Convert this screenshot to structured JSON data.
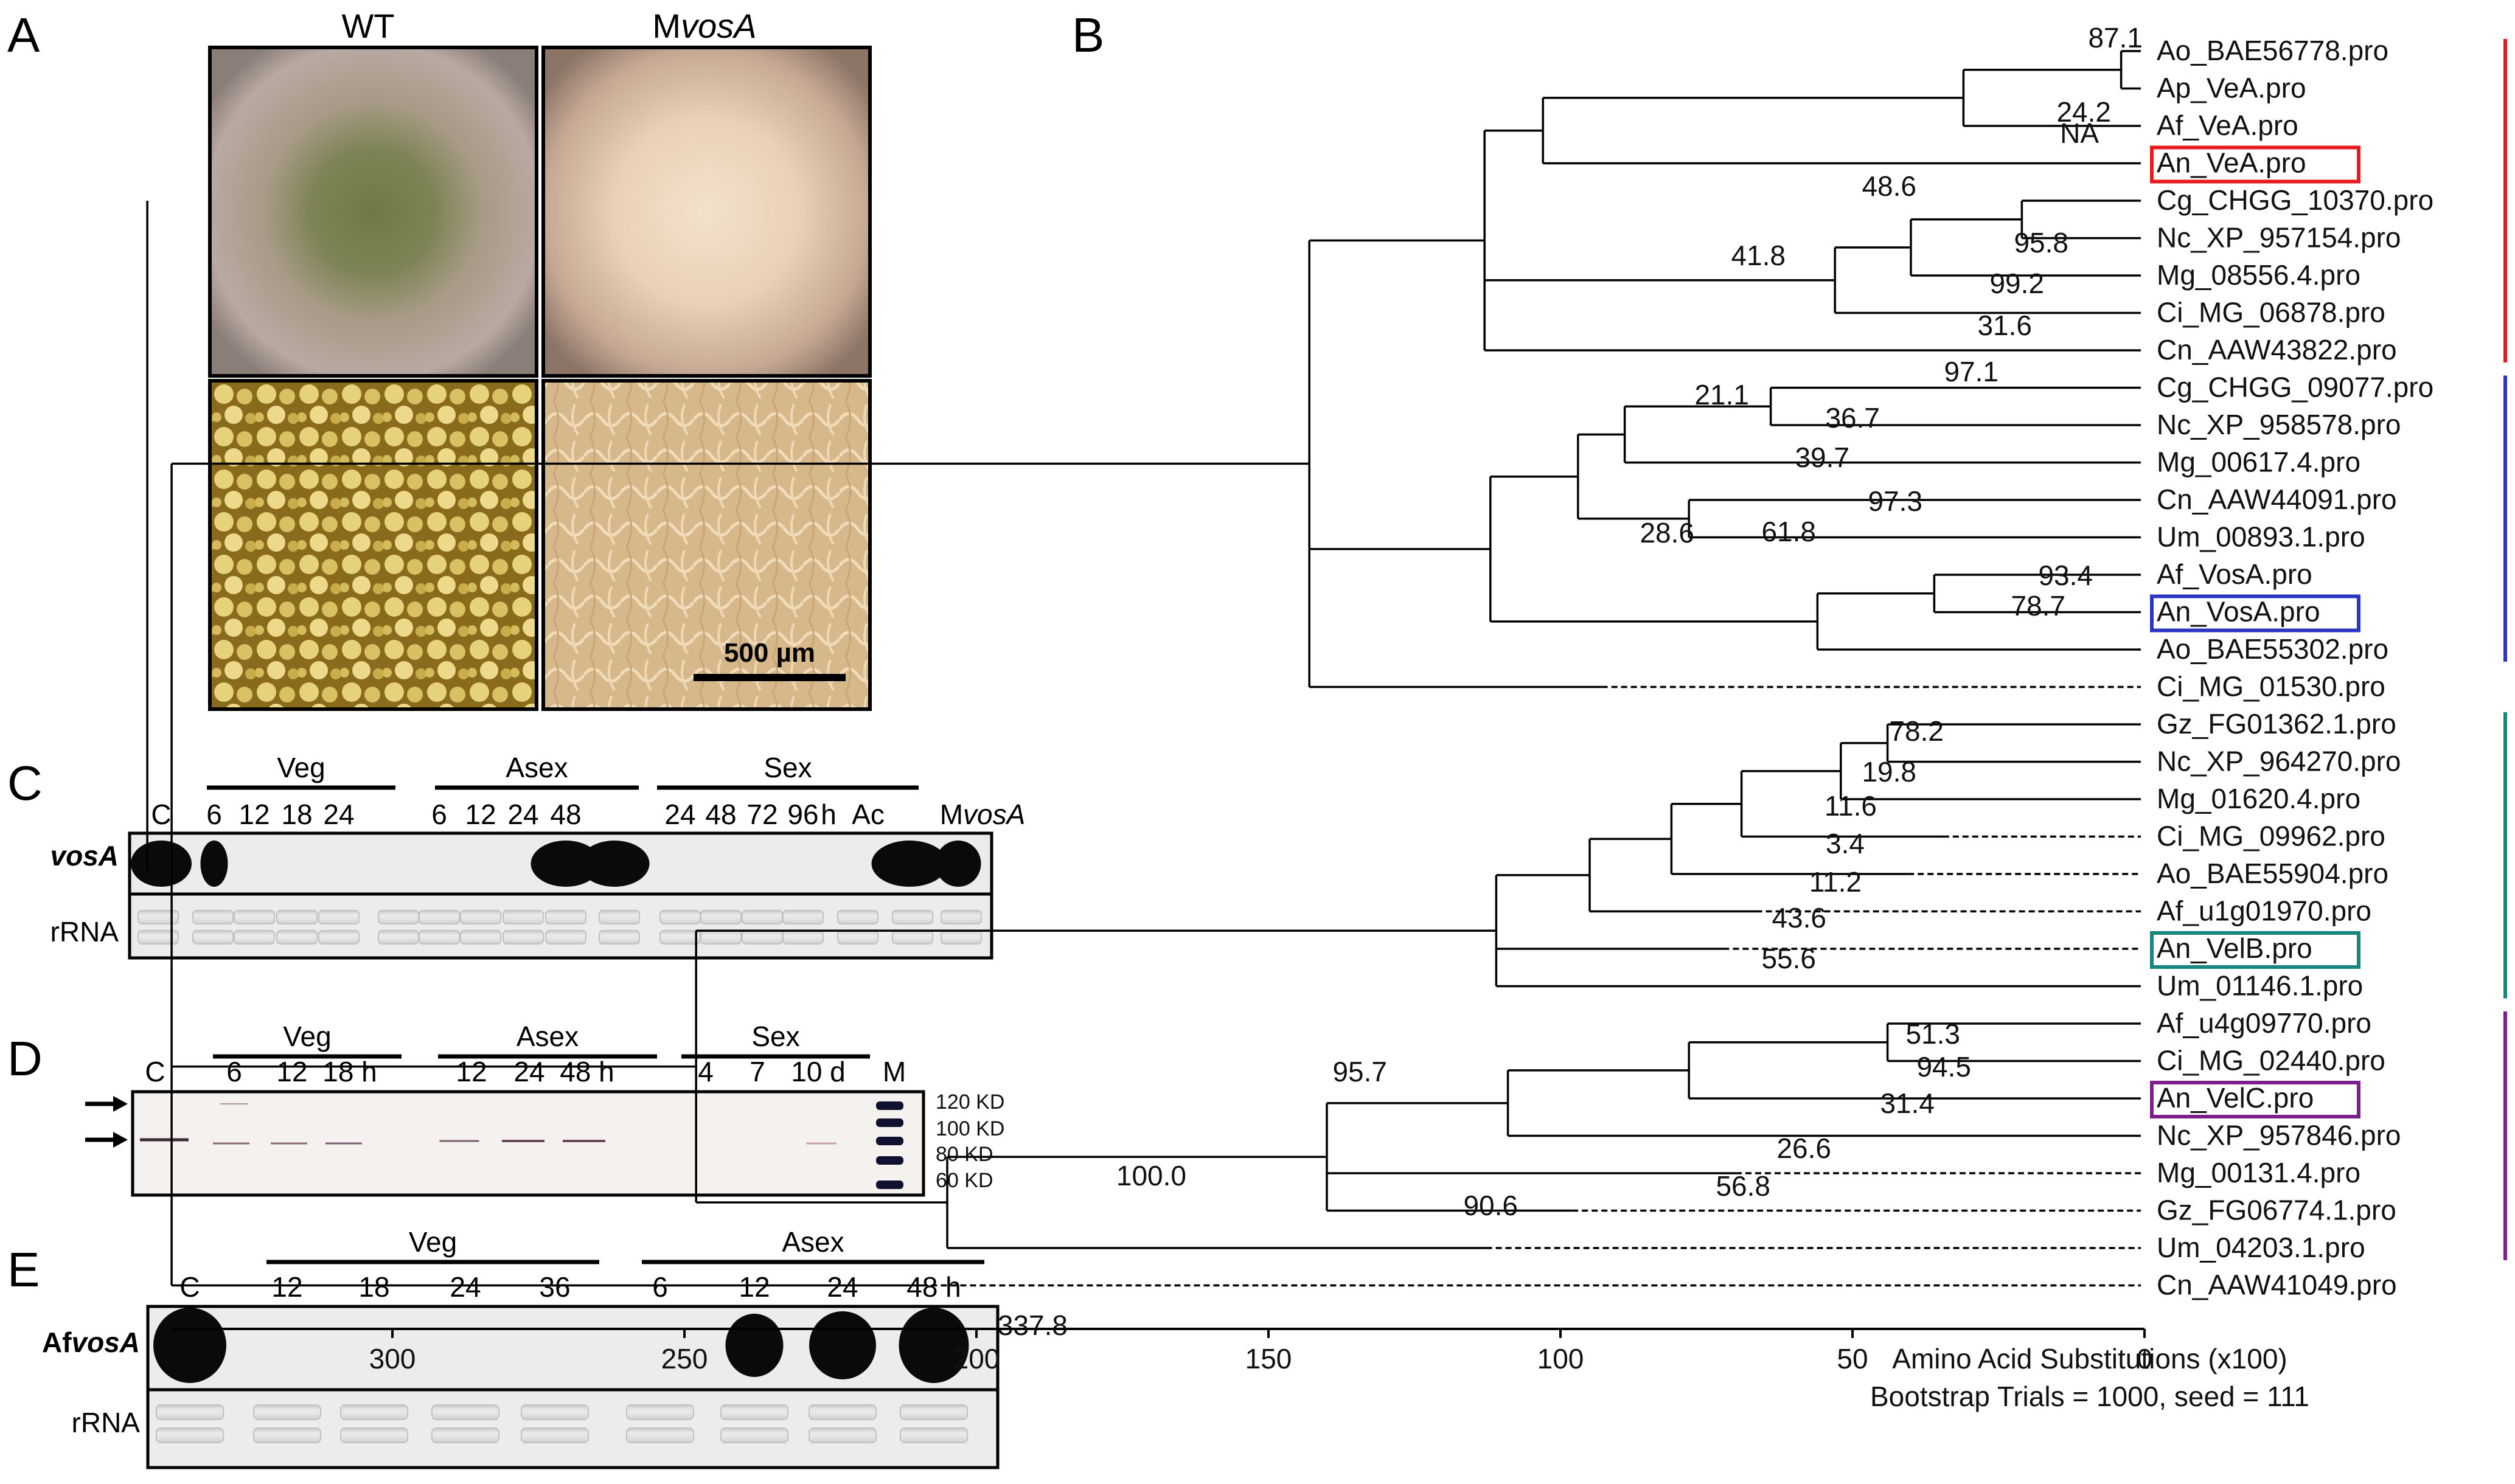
{
  "panels": {
    "a": "A",
    "b": "B",
    "c": "C",
    "d": "D",
    "e": "E"
  },
  "panel_a": {
    "col_wt": "WT",
    "col_mvosa_prefix": "M",
    "col_mvosa_italic": "vosA",
    "scale_bar": "500 µm"
  },
  "panel_c": {
    "groups": [
      "Veg",
      "Asex",
      "Sex"
    ],
    "control": "C",
    "lanes": [
      "6",
      "12",
      "18",
      "24",
      "6",
      "12",
      "24",
      "48",
      "24",
      "48",
      "72",
      "96",
      "h",
      "Ac"
    ],
    "mutant_prefix": "M",
    "mutant_italic": "vosA",
    "row_vosa": "vosA",
    "row_rrna": "rRNA"
  },
  "panel_d": {
    "groups": [
      "Veg",
      "Asex",
      "Sex"
    ],
    "control": "C",
    "lanes": [
      "6",
      "12",
      "18 h",
      "12",
      "24",
      "48 h",
      "4",
      "7",
      "10 d",
      "M"
    ],
    "markers": [
      "120 KD",
      "100 KD",
      "80 KD",
      "60 KD"
    ],
    "arrow_icon": "arrow-right-icon"
  },
  "panel_e": {
    "groups": [
      "Veg",
      "Asex"
    ],
    "control": "C",
    "lanes": [
      "12",
      "18",
      "24",
      "36",
      "6",
      "12",
      "24",
      "48 h"
    ],
    "row_prefix": "Af",
    "row_italic": "vosA",
    "row_rrna": "rRNA"
  },
  "tree": {
    "taxa": [
      "Ao_BAE56778.pro",
      "Ap_VeA.pro",
      "Af_VeA.pro",
      "An_VeA.pro",
      "Cg_CHGG_10370.pro",
      "Nc_XP_957154.pro",
      "Mg_08556.4.pro",
      "Ci_MG_06878.pro",
      "Cn_AAW43822.pro",
      "Cg_CHGG_09077.pro",
      "Nc_XP_958578.pro",
      "Mg_00617.4.pro",
      "Cn_AAW44091.pro",
      "Um_00893.1.pro",
      "Af_VosA.pro",
      "An_VosA.pro",
      "Ao_BAE55302.pro",
      "Ci_MG_01530.pro",
      "Gz_FG01362.1.pro",
      "Nc_XP_964270.pro",
      "Mg_01620.4.pro",
      "Ci_MG_09962.pro",
      "Ao_BAE55904.pro",
      "Af_u1g01970.pro",
      "An_VelB.pro",
      "Um_01146.1.pro",
      "Af_u4g09770.pro",
      "Ci_MG_02440.pro",
      "An_VelC.pro",
      "Nc_XP_957846.pro",
      "Mg_00131.4.pro",
      "Gz_FG06774.1.pro",
      "Um_04203.1.pro",
      "Cn_AAW41049.pro"
    ],
    "bootstrap": [
      "87.1",
      "24.2",
      "NA",
      "48.6",
      "95.8",
      "99.2",
      "31.6",
      "41.8",
      "97.1",
      "36.7",
      "39.7",
      "97.3",
      "21.1",
      "61.8",
      "28.6",
      "93.4",
      "78.7",
      "78.2",
      "19.8",
      "11.6",
      "3.4",
      "11.2",
      "43.6",
      "55.6",
      "51.3",
      "94.5",
      "31.4",
      "26.6",
      "56.8",
      "95.7",
      "90.6",
      "100.0",
      "337.8"
    ],
    "axis_ticks": [
      "300",
      "250",
      "200",
      "150",
      "100",
      "50",
      "0"
    ],
    "axis_label": "Amino Acid Substitutions (x100)",
    "axis_sublabel": "Bootstrap Trials = 1000, seed = 111",
    "colors": {
      "veA": "#e8191f",
      "vosA": "#2b35c4",
      "velB": "#16877f",
      "velC": "#7c1f8a"
    }
  }
}
